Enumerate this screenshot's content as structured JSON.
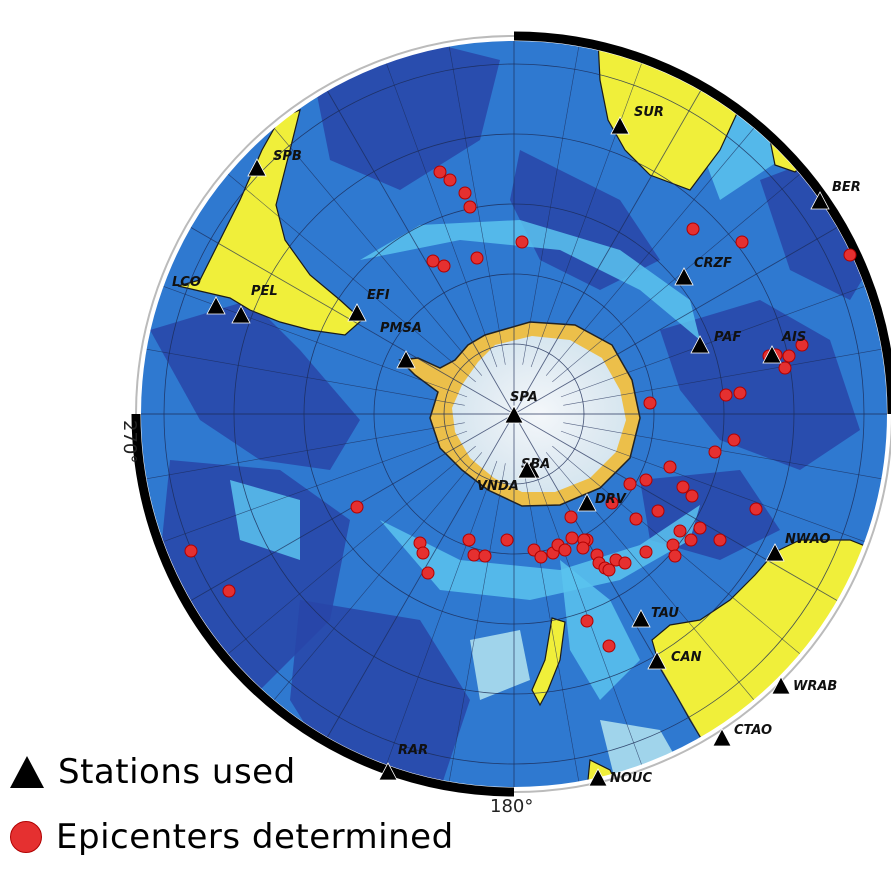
{
  "map": {
    "lon_labels": {
      "left": "270°",
      "bottom": "180°"
    },
    "colors": {
      "deep_ocean": "#2845a8",
      "mid_ocean": "#2f79d0",
      "shallow_ocean": "#5bc3ef",
      "shelf": "#b4e4f0",
      "land": "#f0ef3a",
      "ice": "#e8f2f7",
      "ice_edge": "#ecbf4a",
      "station": "#000000",
      "epicenter": "#e53030"
    },
    "stations": [
      {
        "code": "SUR"
      },
      {
        "code": "SPB"
      },
      {
        "code": "BER"
      },
      {
        "code": "LCO"
      },
      {
        "code": "PEL"
      },
      {
        "code": "EFI"
      },
      {
        "code": "CRZF"
      },
      {
        "code": "PMSA"
      },
      {
        "code": "PAF"
      },
      {
        "code": "AIS"
      },
      {
        "code": "SPA"
      },
      {
        "code": "SBA"
      },
      {
        "code": "VNDA"
      },
      {
        "code": "DRV"
      },
      {
        "code": "NWAO"
      },
      {
        "code": "TAU"
      },
      {
        "code": "CAN"
      },
      {
        "code": "WRAB"
      },
      {
        "code": "CTAO"
      },
      {
        "code": "RAR"
      },
      {
        "code": "NOUC"
      }
    ]
  },
  "legend": {
    "stations_label": "Stations used",
    "epicenters_label": "Epicenters determined"
  }
}
